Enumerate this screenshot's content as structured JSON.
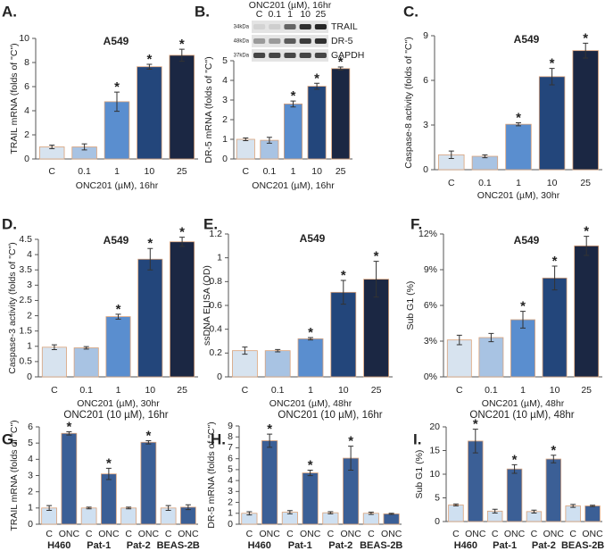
{
  "chart_data": [
    {
      "type": "bar",
      "panel": "A.",
      "title": "A549",
      "ylabel": "TRAIL mRNA (folds of \"C\")",
      "xlabel": "ONC201 (µM), 16hr",
      "categories": [
        "C",
        "0.1",
        "1",
        "10",
        "25"
      ],
      "values": [
        1,
        1,
        4.75,
        7.65,
        8.6
      ],
      "errors": [
        0.15,
        0.25,
        0.8,
        0.2,
        0.5
      ],
      "significance": [
        null,
        null,
        "*",
        "*",
        "*"
      ],
      "colors": [
        "#d7e3ef",
        "#a8c3e3",
        "#5a8ecf",
        "#23467b",
        "#1b2743"
      ],
      "ylim": [
        0,
        10
      ],
      "yticks": [
        0,
        2,
        4,
        6,
        8,
        10
      ]
    },
    {
      "type": "bar",
      "panel": "B.",
      "ylabel": "DR-5 mRNA (folds of \"C\")",
      "xlabel": "ONC201 (µM), 16hr",
      "categories": [
        "C",
        "0.1",
        "1",
        "10",
        "25"
      ],
      "values": [
        1,
        0.95,
        2.8,
        3.7,
        4.6
      ],
      "errors": [
        0.07,
        0.15,
        0.15,
        0.15,
        0.08
      ],
      "significance": [
        null,
        null,
        "*",
        "*",
        "*"
      ],
      "colors": [
        "#d7e3ef",
        "#a8c3e3",
        "#5a8ecf",
        "#23467b",
        "#1b2743"
      ],
      "ylim": [
        0,
        5
      ],
      "yticks": [
        0,
        1,
        2,
        3,
        4,
        5
      ],
      "inset": {
        "title": "ONC201 (µM), 16hr",
        "lanes": [
          "C",
          "0.1",
          "1",
          "10",
          "25"
        ],
        "bands": [
          {
            "marker": "34kDa",
            "label": "TRAIL"
          },
          {
            "marker": "48kDa",
            "label": "DR-5"
          },
          {
            "marker": "37kDa",
            "label": "GAPDH"
          }
        ]
      }
    },
    {
      "type": "bar",
      "panel": "C.",
      "title": "A549",
      "ylabel": "Caspase-8 activity (folds of \"C\")",
      "xlabel": "ONC201 (µM), 30hr",
      "categories": [
        "C",
        "0.1",
        "1",
        "10",
        "25"
      ],
      "values": [
        1,
        0.9,
        3.05,
        6.25,
        8.0
      ],
      "errors": [
        0.25,
        0.1,
        0.1,
        0.55,
        0.5
      ],
      "significance": [
        null,
        null,
        "*",
        "*",
        "*"
      ],
      "colors": [
        "#d7e3ef",
        "#a8c3e3",
        "#5a8ecf",
        "#23467b",
        "#1b2743"
      ],
      "ylim": [
        0,
        9
      ],
      "yticks": [
        0,
        3,
        6,
        9
      ]
    },
    {
      "type": "bar",
      "panel": "D.",
      "title": "A549",
      "ylabel": "Caspase-3 activity (folds of \"C\")",
      "xlabel": "ONC201 (µM), 30hr",
      "categories": [
        "C",
        "0.1",
        "1",
        "10",
        "25"
      ],
      "values": [
        0.97,
        0.95,
        1.97,
        3.85,
        4.42
      ],
      "errors": [
        0.08,
        0.04,
        0.08,
        0.35,
        0.15
      ],
      "significance": [
        null,
        null,
        "*",
        "*",
        "*"
      ],
      "colors": [
        "#d7e3ef",
        "#a8c3e3",
        "#5a8ecf",
        "#23467b",
        "#1b2743"
      ],
      "ylim": [
        0,
        4.5
      ],
      "yticks": [
        0,
        0.5,
        1,
        1.5,
        2,
        2.5,
        3,
        3.5,
        4,
        4.5
      ]
    },
    {
      "type": "bar",
      "panel": "E.",
      "title": "A549",
      "ylabel": "ssDNA ELISA (OD)",
      "xlabel": "ONC201 (µM), 48hr",
      "categories": [
        "C",
        "0.1",
        "1",
        "10",
        "25"
      ],
      "values": [
        0.22,
        0.22,
        0.32,
        0.71,
        0.82
      ],
      "errors": [
        0.03,
        0.01,
        0.01,
        0.1,
        0.15
      ],
      "significance": [
        null,
        null,
        "*",
        "*",
        "*"
      ],
      "colors": [
        "#d7e3ef",
        "#a8c3e3",
        "#5a8ecf",
        "#23467b",
        "#1b2743"
      ],
      "ylim": [
        0,
        1.2
      ],
      "yticks": [
        0,
        0.2,
        0.4,
        0.6,
        0.8,
        1,
        1.2
      ]
    },
    {
      "type": "bar",
      "panel": "F.",
      "title": "A549",
      "ylabel": "Sub G1 (%)",
      "xlabel": "ONC201 (µM), 48hr",
      "categories": [
        "C",
        "0.1",
        "1",
        "10",
        "25"
      ],
      "values": [
        3.1,
        3.3,
        4.8,
        8.3,
        11.0
      ],
      "errors": [
        0.4,
        0.35,
        0.7,
        1.0,
        0.8
      ],
      "significance": [
        null,
        null,
        "*",
        "*",
        "*"
      ],
      "colors": [
        "#d7e3ef",
        "#a8c3e3",
        "#5a8ecf",
        "#23467b",
        "#1b2743"
      ],
      "ylim": [
        0,
        12
      ],
      "yticks": [
        {
          "value": 0,
          "label": "0%"
        },
        {
          "value": 3,
          "label": "3%"
        },
        {
          "value": 6,
          "label": "6%"
        },
        {
          "value": 9,
          "label": "9%"
        },
        {
          "value": 12,
          "label": "12%"
        }
      ]
    },
    {
      "type": "bar",
      "panel": "G.",
      "title": "ONC201 (10 µM), 16hr",
      "ylabel": "TRAIL mRNA (folds of \"C\")",
      "categories": [
        "C",
        "ONC",
        "C",
        "ONC",
        "C",
        "ONC",
        "C",
        "ONC"
      ],
      "groups": [
        "H460",
        "Pat-1",
        "Pat-2",
        "BEAS-2B"
      ],
      "values": [
        1,
        5.6,
        1,
        3.1,
        1,
        5.05,
        1,
        1.05
      ],
      "errors": [
        0.15,
        0.1,
        0.05,
        0.35,
        0.05,
        0.1,
        0.15,
        0.15
      ],
      "significance": [
        null,
        "*",
        null,
        "*",
        null,
        "*",
        null,
        null
      ],
      "colors": [
        "#cfe0f1",
        "#3b5f96",
        "#cfe0f1",
        "#3b5f96",
        "#cfe0f1",
        "#3b5f96",
        "#cfe0f1",
        "#3b5f96"
      ],
      "ylim": [
        0,
        6
      ],
      "yticks": [
        0,
        1,
        2,
        3,
        4,
        5,
        6
      ]
    },
    {
      "type": "bar",
      "panel": "H.",
      "title": "ONC201 (10 µM), 16hr",
      "ylabel": "DR-5 mRNA (folds of \"C\")",
      "categories": [
        "C",
        "ONC",
        "C",
        "ONC",
        "C",
        "ONC",
        "C",
        "ONC"
      ],
      "groups": [
        "H460",
        "Pat-1",
        "Pat-2",
        "BEAS-2B"
      ],
      "values": [
        1,
        7.65,
        1.1,
        4.7,
        1.05,
        6.05,
        1.0,
        0.95
      ],
      "errors": [
        0.15,
        0.6,
        0.15,
        0.25,
        0.1,
        1.1,
        0.1,
        0.05
      ],
      "significance": [
        null,
        "*",
        null,
        "*",
        null,
        "*",
        null,
        null
      ],
      "colors": [
        "#cfe0f1",
        "#3b5f96",
        "#cfe0f1",
        "#3b5f96",
        "#cfe0f1",
        "#3b5f96",
        "#cfe0f1",
        "#3b5f96"
      ],
      "ylim": [
        0,
        9
      ],
      "yticks": [
        0,
        1,
        2,
        3,
        4,
        5,
        6,
        7,
        8,
        9
      ]
    },
    {
      "type": "bar",
      "panel": "I.",
      "title": "ONC201 (10 µM), 48hr",
      "ylabel": "Sub G1 (%)",
      "categories": [
        "C",
        "ONC",
        "C",
        "ONC",
        "C",
        "ONC",
        "C",
        "ONC"
      ],
      "groups": [
        "H460",
        "Pat-1",
        "Pat-2",
        "BEAS-2B"
      ],
      "values": [
        3.5,
        17,
        2.2,
        11.1,
        2.1,
        13.2,
        3.3,
        3.3
      ],
      "errors": [
        0.2,
        2.5,
        0.4,
        0.9,
        0.3,
        0.8,
        0.3,
        0.15
      ],
      "significance": [
        null,
        "*",
        null,
        "*",
        null,
        "*",
        null,
        null
      ],
      "colors": [
        "#cfe0f1",
        "#3b5f96",
        "#cfe0f1",
        "#3b5f96",
        "#cfe0f1",
        "#3b5f96",
        "#cfe0f1",
        "#3b5f96"
      ],
      "ylim": [
        0,
        20
      ],
      "yticks": [
        0,
        5,
        10,
        15,
        20
      ]
    }
  ]
}
